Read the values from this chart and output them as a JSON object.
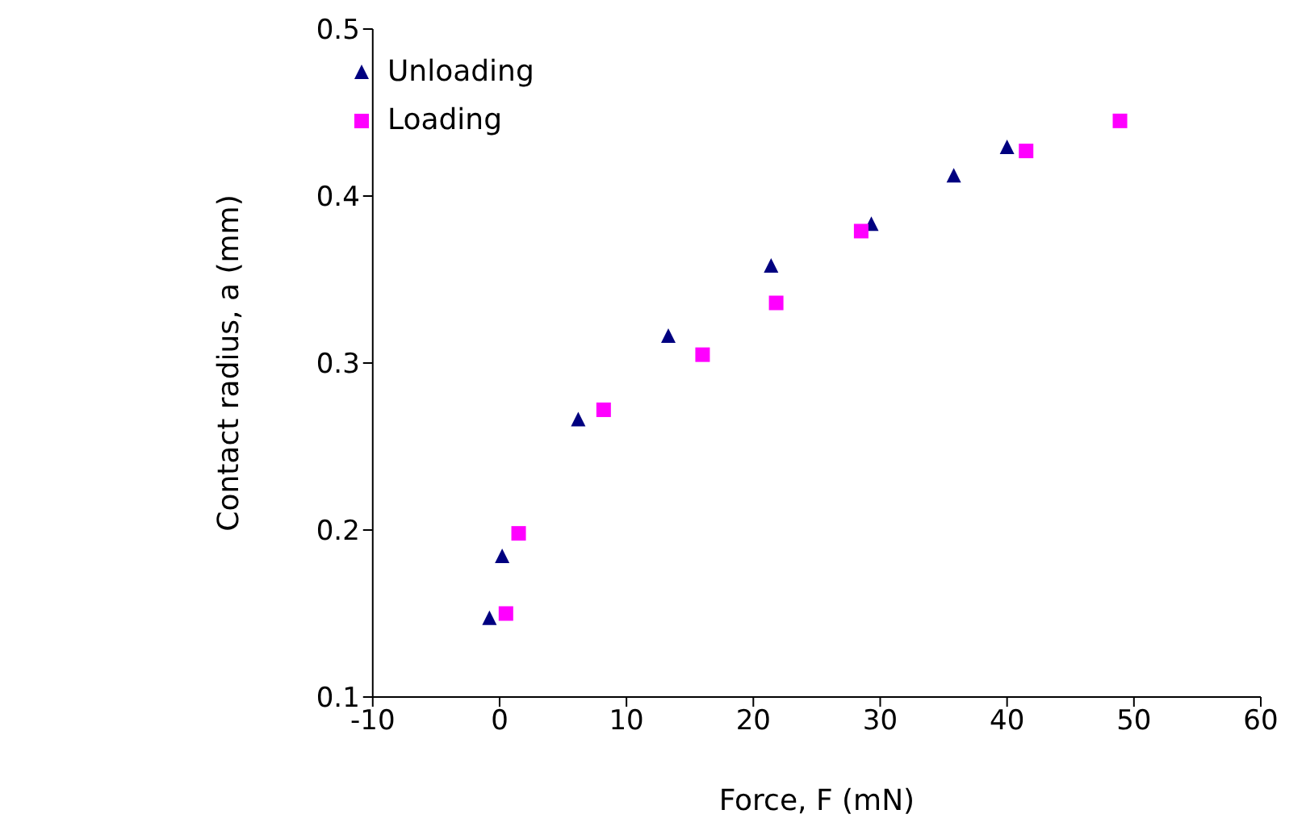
{
  "chart_data": {
    "type": "scatter",
    "xlabel": "Force, F (mN)",
    "ylabel": "Contact radius, a (mm)",
    "xlim": [
      -10,
      60
    ],
    "xticks": [
      -10,
      0,
      10,
      20,
      30,
      40,
      50,
      60
    ],
    "ylim": [
      0.1,
      0.5
    ],
    "yticks": [
      0.1,
      0.2,
      0.3,
      0.4,
      0.5
    ],
    "grid": false,
    "legend": "top left",
    "series": [
      {
        "name": "Unloading",
        "color": "#000080",
        "marker": "triangle",
        "x": [
          -0.8,
          0.2,
          6.2,
          13.3,
          21.4,
          29.3,
          35.8,
          40.0
        ],
        "values": [
          0.147,
          0.184,
          0.266,
          0.316,
          0.358,
          0.383,
          0.412,
          0.429
        ]
      },
      {
        "name": "Loading",
        "color": "#ff00ff",
        "marker": "square",
        "x": [
          0.5,
          1.5,
          8.2,
          16.0,
          21.8,
          28.5,
          41.5,
          48.9
        ],
        "values": [
          0.15,
          0.198,
          0.272,
          0.305,
          0.336,
          0.379,
          0.427,
          0.445
        ]
      }
    ]
  }
}
